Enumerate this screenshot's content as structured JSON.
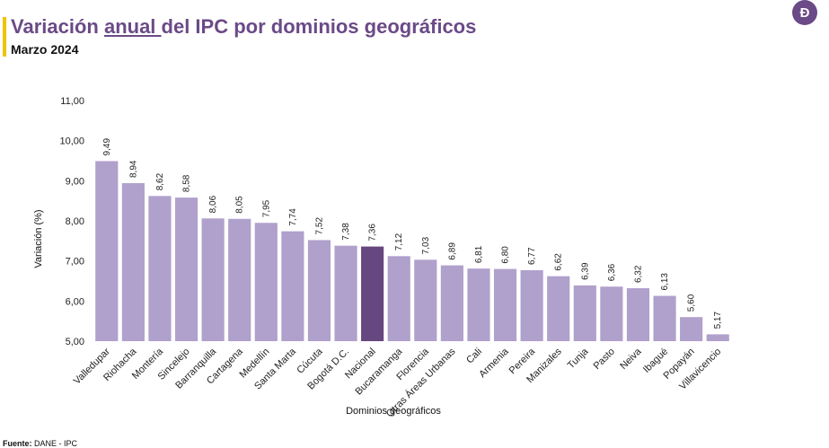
{
  "header": {
    "title_pre": "Variación ",
    "title_underlined": "anual ",
    "title_post": "del IPC por dominios geográficos",
    "subtitle": "Marzo 2024",
    "logo_glyph": "Ð",
    "accent_color": "#f2c200",
    "title_color": "#6b4a87"
  },
  "footer": {
    "source_label": "Fuente:",
    "source_value": " DANE - IPC"
  },
  "chart_data": {
    "type": "bar",
    "title": "Variación anual del IPC por dominios geográficos",
    "xlabel": "Dominios geográficos",
    "ylabel": "Variación (%)",
    "ylim": [
      5.0,
      11.0
    ],
    "yticks": [
      "5,00",
      "6,00",
      "7,00",
      "8,00",
      "9,00",
      "10,00",
      "11,00"
    ],
    "grid": false,
    "bar_color": "#b0a0cc",
    "highlight_color": "#67477f",
    "highlight_category": "Nacional",
    "categories": [
      "Valledupar",
      "Riohacha",
      "Montería",
      "Sincelejo",
      "Barranquilla",
      "Cartagena",
      "Medellín",
      "Santa Marta",
      "Cúcuta",
      "Bogotá D.C.",
      "Nacional",
      "Bucaramanga",
      "Florencia",
      "Otras Áreas Urbanas",
      "Cali",
      "Armenia",
      "Pereira",
      "Manizales",
      "Tunja",
      "Pasto",
      "Neiva",
      "Ibagué",
      "Popayán",
      "Villavicencio"
    ],
    "values": [
      9.49,
      8.94,
      8.62,
      8.58,
      8.06,
      8.05,
      7.95,
      7.74,
      7.52,
      7.38,
      7.36,
      7.12,
      7.03,
      6.89,
      6.81,
      6.8,
      6.77,
      6.62,
      6.39,
      6.36,
      6.32,
      6.13,
      5.6,
      5.17
    ],
    "value_labels": [
      "9,49",
      "8,94",
      "8,62",
      "8,58",
      "8,06",
      "8,05",
      "7,95",
      "7,74",
      "7,52",
      "7,38",
      "7,36",
      "7,12",
      "7,03",
      "6,89",
      "6,81",
      "6,80",
      "6,77",
      "6,62",
      "6,39",
      "6,36",
      "6,32",
      "6,13",
      "5,60",
      "5,17"
    ]
  }
}
